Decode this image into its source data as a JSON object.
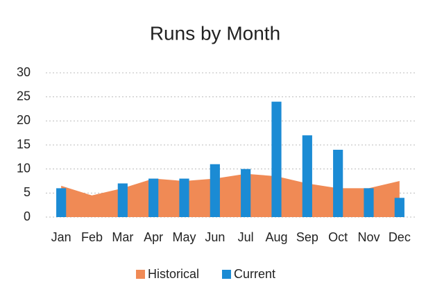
{
  "chart_data": {
    "type": "combo",
    "title": "Runs by Month",
    "categories": [
      "Jan",
      "Feb",
      "Mar",
      "Apr",
      "May",
      "Jun",
      "Jul",
      "Aug",
      "Sep",
      "Oct",
      "Nov",
      "Dec"
    ],
    "series": [
      {
        "name": "Historical",
        "type": "area",
        "color": "#f08a55",
        "values": [
          6.5,
          4.5,
          6,
          8,
          7.5,
          8,
          9,
          8.5,
          7,
          6,
          6,
          7.5
        ]
      },
      {
        "name": "Current",
        "type": "bar",
        "color": "#1b8bd4",
        "values": [
          6,
          null,
          7,
          8,
          8,
          11,
          10,
          24,
          17,
          14,
          6,
          4
        ]
      }
    ],
    "ylim": [
      0,
      30
    ],
    "yticks": [
      0,
      5,
      10,
      15,
      20,
      25,
      30
    ],
    "grid": true,
    "legend": "bottom"
  }
}
